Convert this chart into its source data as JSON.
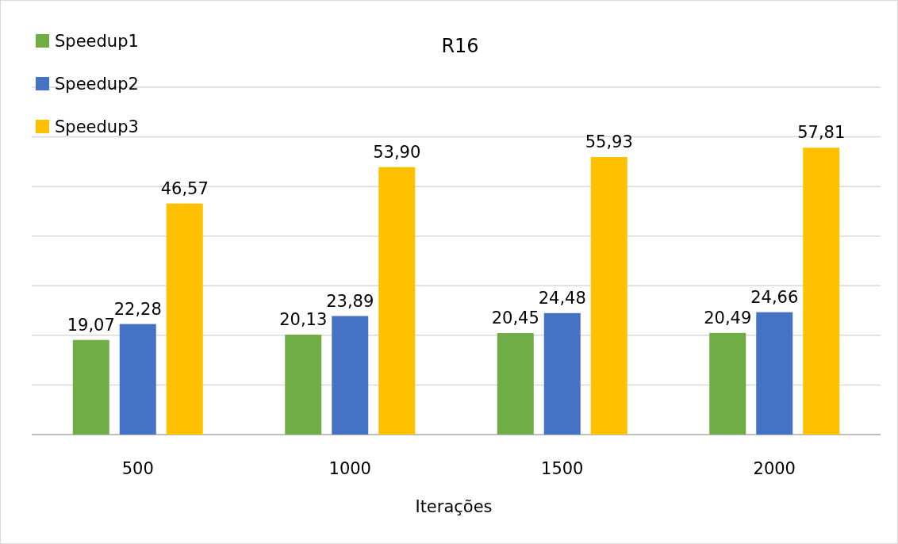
{
  "chart_data": {
    "type": "bar",
    "title": "R16",
    "xlabel": "Iterações",
    "categories": [
      "500",
      "1000",
      "1500",
      "2000"
    ],
    "series": [
      {
        "name": "Speedup1",
        "color": "#70ad47",
        "values": [
          19.07,
          20.13,
          20.45,
          20.49
        ],
        "value_labels": [
          "19,07",
          "20,13",
          "20,45",
          "20,49"
        ]
      },
      {
        "name": "Speedup2",
        "color": "#4472c4",
        "values": [
          22.28,
          23.89,
          24.48,
          24.66
        ],
        "value_labels": [
          "22,28",
          "23,89",
          "24,48",
          "24,66"
        ]
      },
      {
        "name": "Speedup3",
        "color": "#ffc000",
        "values": [
          46.57,
          53.9,
          55.93,
          57.81
        ],
        "value_labels": [
          "46,57",
          "53,90",
          "55,93",
          "57,81"
        ]
      }
    ],
    "ylim": [
      0,
      70
    ],
    "yticks": [
      {
        "value": 0,
        "label": null
      },
      {
        "value": 10,
        "label": null
      },
      {
        "value": 20,
        "label": null
      },
      {
        "value": 30,
        "label": null
      },
      {
        "value": 40,
        "label": null
      },
      {
        "value": 50,
        "label": null
      },
      {
        "value": 60,
        "label": null
      },
      {
        "value": 70,
        "label": null
      }
    ],
    "tick_labels": "x",
    "grid": "y",
    "legend": "top left"
  }
}
